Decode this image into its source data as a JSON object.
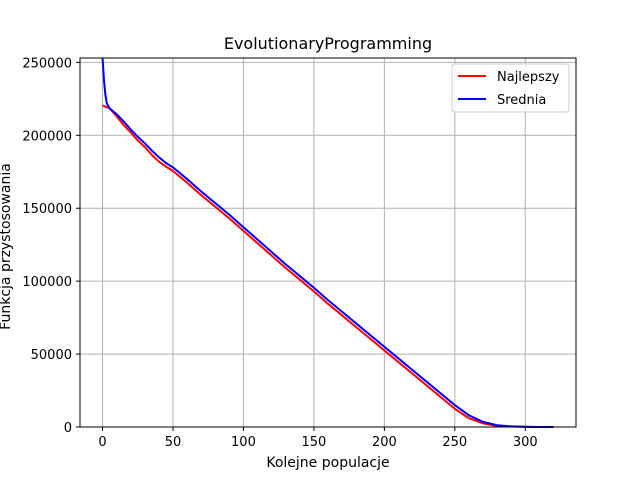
{
  "chart_data": {
    "type": "line",
    "title": "EvolutionaryProgramming",
    "xlabel": "Kolejne populacje",
    "ylabel": "Funkcja przystosowania",
    "xlim": [
      -16,
      336
    ],
    "ylim": [
      0,
      253000
    ],
    "xticks": [
      0,
      50,
      100,
      150,
      200,
      250,
      300
    ],
    "yticks": [
      0,
      50000,
      100000,
      150000,
      200000,
      250000
    ],
    "grid": true,
    "legend_position": "top-right",
    "series": [
      {
        "name": "Najlepszy",
        "color": "#ff0000",
        "x": [
          0,
          5,
          10,
          15,
          20,
          25,
          30,
          35,
          40,
          45,
          50,
          60,
          70,
          80,
          90,
          100,
          110,
          120,
          130,
          140,
          150,
          160,
          170,
          180,
          190,
          200,
          210,
          220,
          230,
          240,
          250,
          260,
          270,
          280,
          290,
          300,
          305,
          310,
          313,
          316,
          320
        ],
        "values": [
          220500,
          218500,
          213000,
          207000,
          202000,
          196500,
          192000,
          186500,
          182000,
          178500,
          175500,
          167500,
          159000,
          151000,
          143000,
          134500,
          126000,
          117500,
          109000,
          101000,
          93000,
          84500,
          76500,
          68500,
          60500,
          52500,
          44500,
          36500,
          28500,
          20500,
          12500,
          6000,
          2500,
          800,
          300,
          100,
          0,
          0,
          0,
          0,
          0
        ]
      },
      {
        "name": "Srednia",
        "color": "#0000ff",
        "x": [
          0,
          1,
          2,
          3,
          5,
          8,
          10,
          15,
          20,
          25,
          30,
          35,
          40,
          45,
          50,
          60,
          70,
          80,
          90,
          100,
          110,
          120,
          130,
          140,
          150,
          160,
          170,
          180,
          190,
          200,
          210,
          220,
          230,
          240,
          250,
          260,
          270,
          280,
          290,
          300,
          305,
          310,
          315,
          320
        ],
        "values": [
          253000,
          238000,
          228000,
          222000,
          218500,
          216000,
          214500,
          209500,
          204000,
          199000,
          194500,
          189500,
          185000,
          181000,
          178000,
          170000,
          161500,
          153500,
          145500,
          137000,
          128500,
          120000,
          111500,
          103500,
          95500,
          87000,
          79000,
          71000,
          63000,
          55000,
          47000,
          39000,
          31000,
          23000,
          15000,
          8000,
          3500,
          1200,
          400,
          150,
          50,
          0,
          0,
          0
        ]
      }
    ]
  }
}
